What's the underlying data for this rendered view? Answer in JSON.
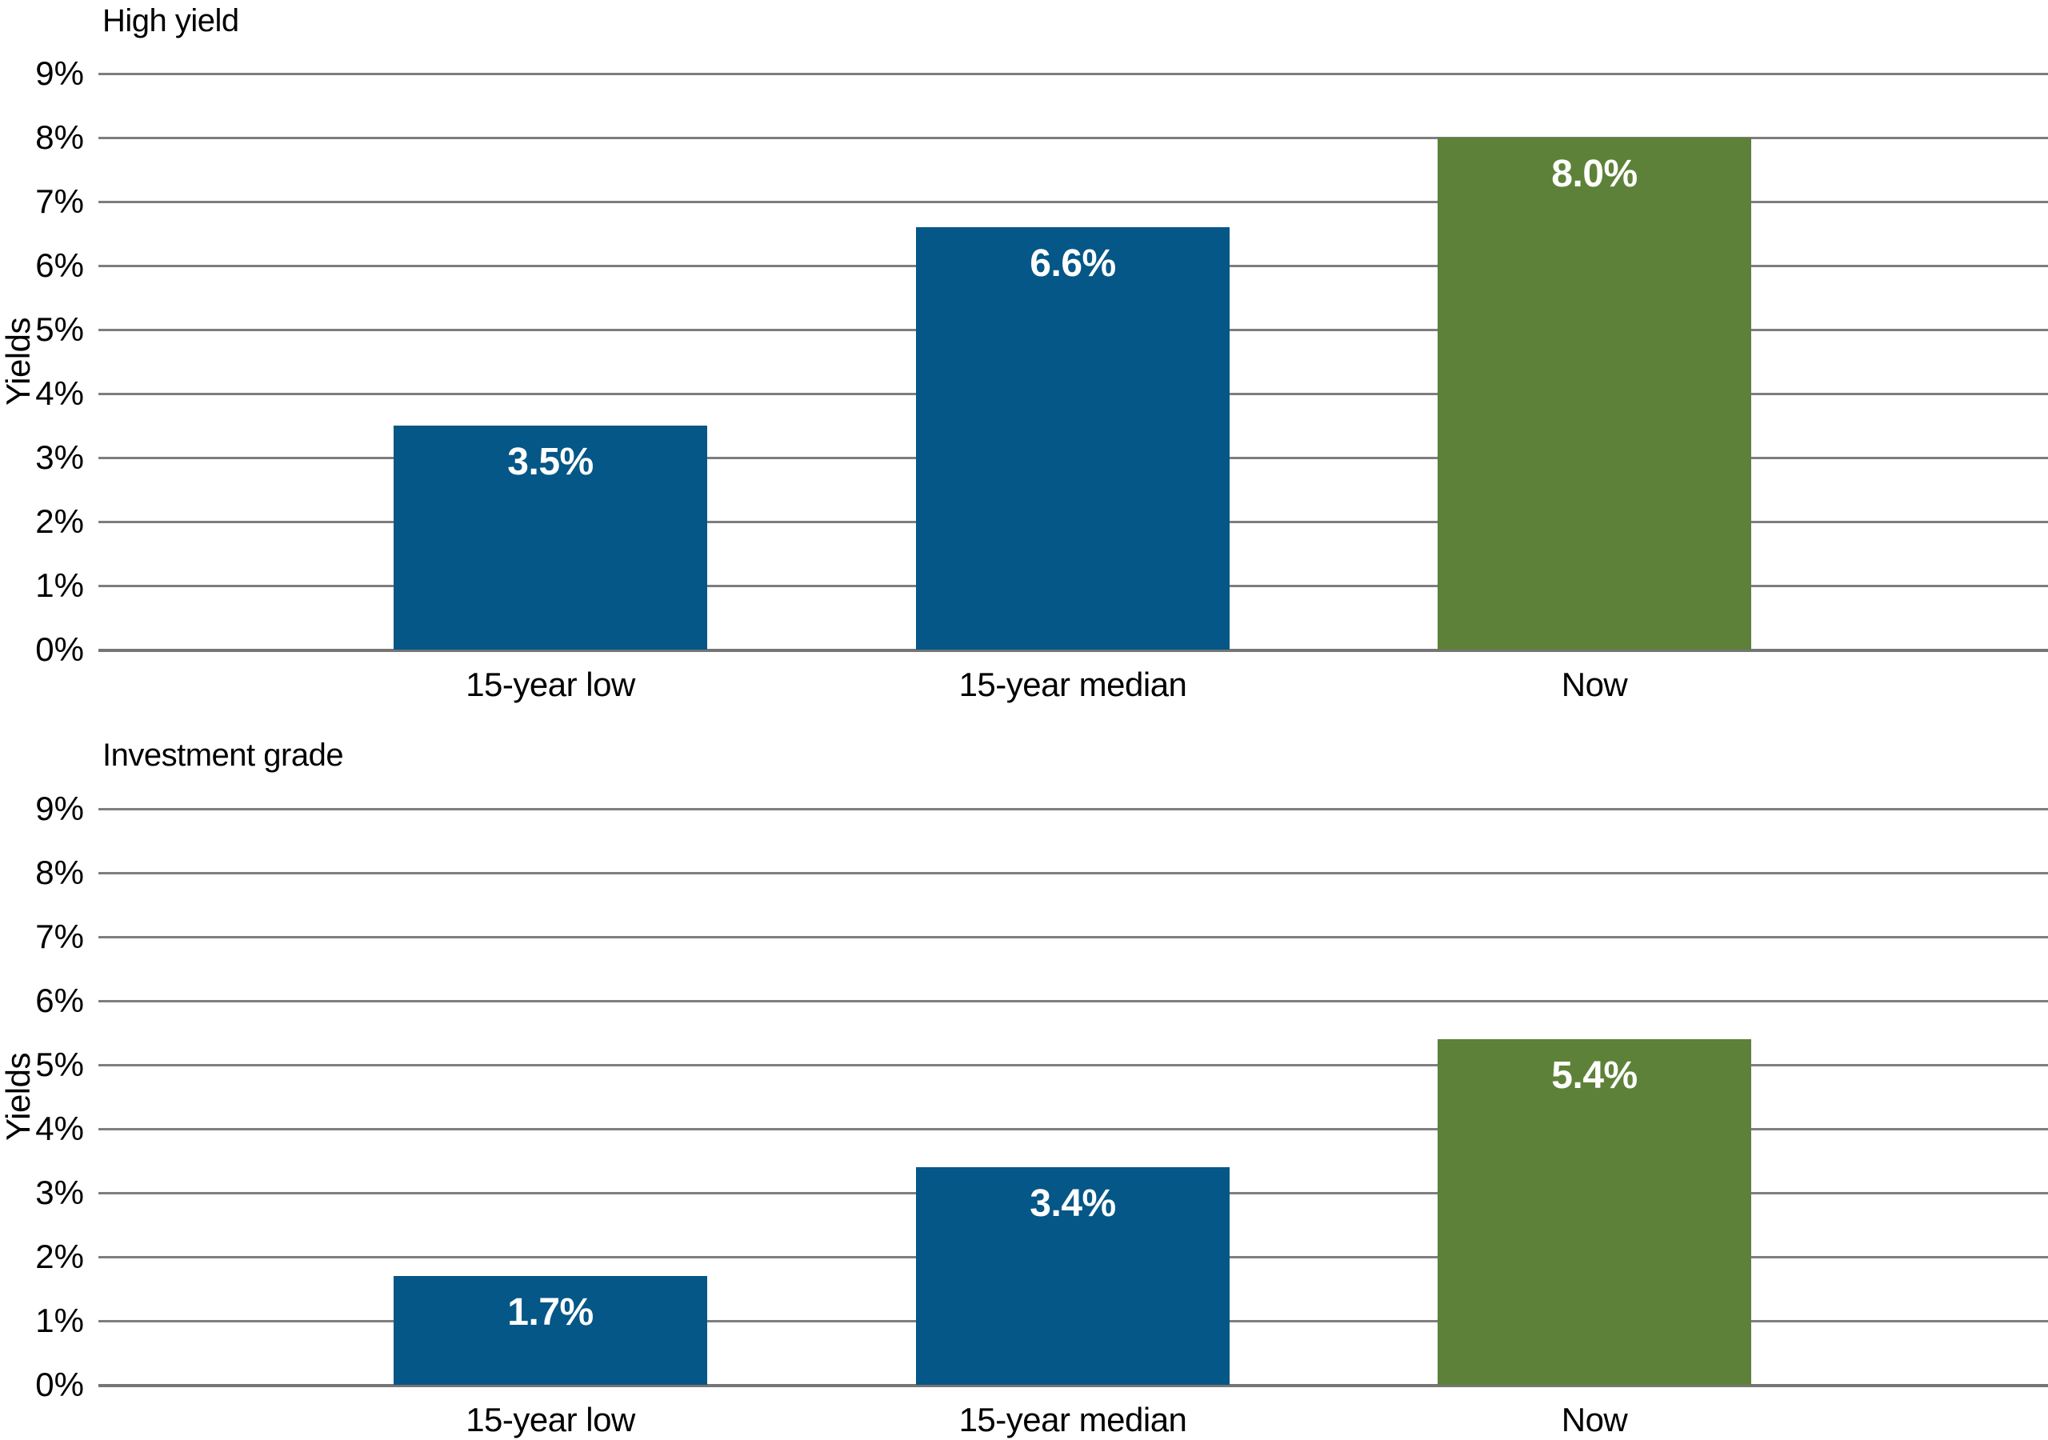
{
  "colors": {
    "background": "#ffffff",
    "bar_blue": "#045787",
    "bar_green": "#5d8138",
    "gridline": "#7e7e7e",
    "axis_text": "#000000",
    "bar_label_text": "#ffffff"
  },
  "chart_data": [
    {
      "type": "bar",
      "title": "High yield",
      "ylabel": "Yields",
      "categories": [
        "15-year low",
        "15-year median",
        "Now"
      ],
      "values": [
        3.5,
        6.6,
        8.0
      ],
      "value_labels": [
        "3.5%",
        "6.6%",
        "8.0%"
      ],
      "bar_colors": [
        "#045787",
        "#045787",
        "#5d8138"
      ],
      "ylim": [
        0,
        9
      ],
      "ytick_step": 1,
      "ytick_suffix": "%",
      "grid": true,
      "legend": "none"
    },
    {
      "type": "bar",
      "title": "Investment grade",
      "ylabel": "Yields",
      "categories": [
        "15-year low",
        "15-year median",
        "Now"
      ],
      "values": [
        1.7,
        3.4,
        5.4
      ],
      "value_labels": [
        "1.7%",
        "3.4%",
        "5.4%"
      ],
      "bar_colors": [
        "#045787",
        "#045787",
        "#5d8138"
      ],
      "ylim": [
        0,
        9
      ],
      "ytick_step": 1,
      "ytick_suffix": "%",
      "grid": true,
      "legend": "none"
    }
  ]
}
